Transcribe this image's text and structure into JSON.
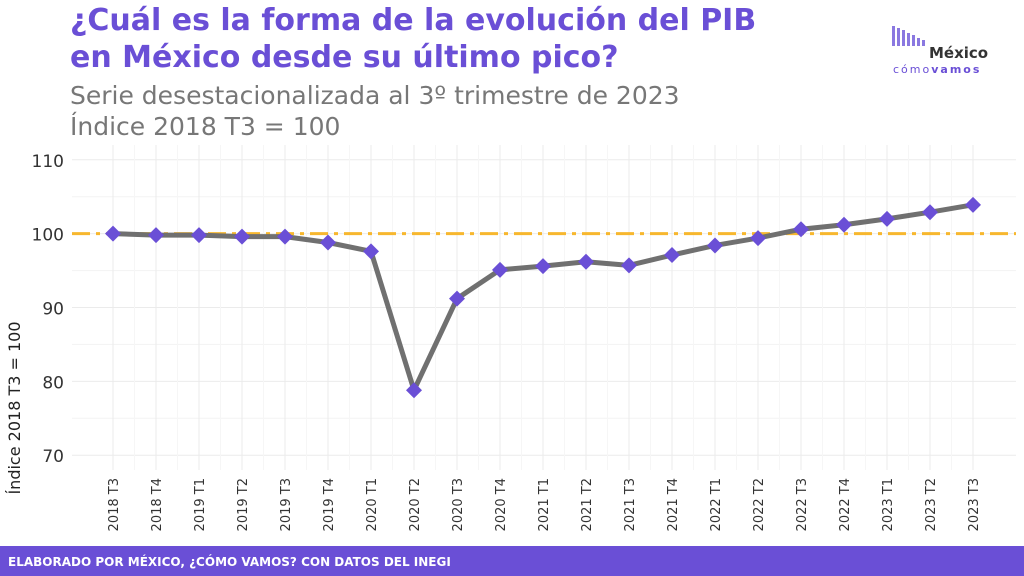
{
  "title_line1": "¿Cuál es la forma de la evolución del PIB",
  "title_line2": "en México desde su último pico?",
  "subtitle_line1": "Serie desestacionalizada al 3º trimestre de 2023",
  "subtitle_line2": "Índice 2018 T3 = 100",
  "logo": {
    "word1": "México",
    "word2_a": "cómo",
    "word2_b": "vamos"
  },
  "footer": "ELABORADO POR MÉXICO, ¿CÓMO VAMOS? CON DATOS DEL INEGI",
  "colors": {
    "accent": "#6a4fd6",
    "line": "#707070",
    "reference": "#f7b72e",
    "grid": "#ebebeb"
  },
  "chart_data": {
    "type": "line",
    "ylabel": "Índice 2018 T3 = 100",
    "xlabel": "",
    "ylim": [
      68,
      112
    ],
    "yticks": [
      70,
      80,
      90,
      100,
      110
    ],
    "grid": true,
    "reference_line": 100,
    "categories": [
      "2018 T3",
      "2018 T4",
      "2019 T1",
      "2019 T2",
      "2019 T3",
      "2019 T4",
      "2020 T1",
      "2020 T2",
      "2020 T3",
      "2020 T4",
      "2021 T1",
      "2021 T2",
      "2021 T3",
      "2021 T4",
      "2022 T1",
      "2022 T2",
      "2022 T3",
      "2022 T4",
      "2023 T1",
      "2023 T2",
      "2023 T3"
    ],
    "values": [
      100,
      99.8,
      99.8,
      99.6,
      99.6,
      98.8,
      97.6,
      78.8,
      91.2,
      95.1,
      95.6,
      96.2,
      95.7,
      97.1,
      98.4,
      99.4,
      100.6,
      101.2,
      102.0,
      102.9,
      103.9
    ]
  }
}
